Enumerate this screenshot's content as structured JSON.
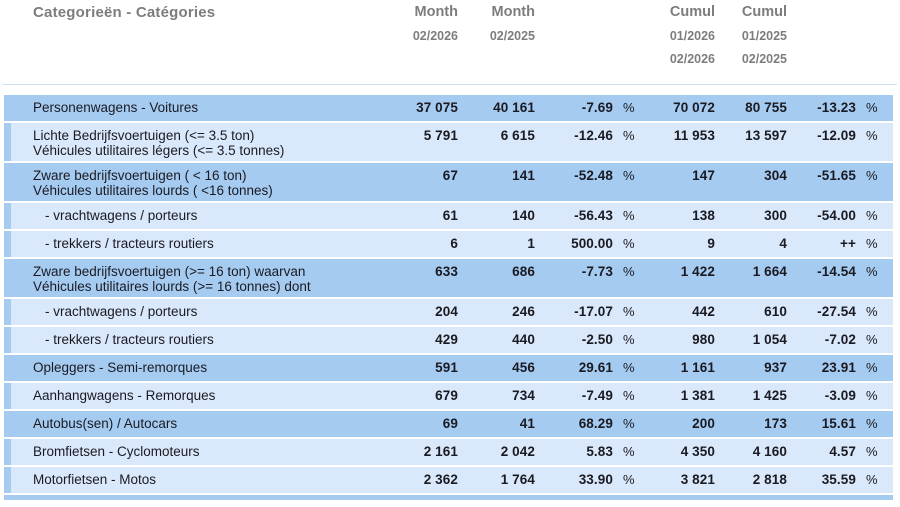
{
  "colors": {
    "row_dark": "#a5cbf1",
    "row_light": "#d9e8fa",
    "hairline": "#cfe2f6",
    "header_text": "#7d7d7d",
    "body_text": "#1a1a22"
  },
  "header": {
    "category_label": "Categorieën - Catégories",
    "columns": [
      {
        "label": "Month",
        "periods": [
          "02/2026"
        ]
      },
      {
        "label": "Month",
        "periods": [
          "02/2025"
        ]
      },
      {
        "label": "Cumul",
        "periods": [
          "01/2026",
          "02/2026"
        ]
      },
      {
        "label": "Cumul",
        "periods": [
          "01/2025",
          "02/2025"
        ]
      }
    ]
  },
  "table": {
    "percent_sign": "%",
    "rows": [
      {
        "category": [
          "Personenwagens - Voitures"
        ],
        "indent": false,
        "shade": "dark",
        "month_current": "37 075",
        "month_previous": "40 161",
        "month_change_pct": "-7.69",
        "cumul_current": "70 072",
        "cumul_previous": "80 755",
        "cumul_change_pct": "-13.23"
      },
      {
        "category": [
          "Lichte Bedrijfsvoertuigen (<= 3.5 ton)",
          "Véhicules utilitaires légers (<= 3.5 tonnes)"
        ],
        "indent": false,
        "shade": "light",
        "month_current": "5 791",
        "month_previous": "6 615",
        "month_change_pct": "-12.46",
        "cumul_current": "11 953",
        "cumul_previous": "13 597",
        "cumul_change_pct": "-12.09"
      },
      {
        "category": [
          "Zware bedrijfsvoertuigen ( < 16 ton)",
          "Véhicules utilitaires lourds ( <16 tonnes)"
        ],
        "indent": false,
        "shade": "dark",
        "month_current": "67",
        "month_previous": "141",
        "month_change_pct": "-52.48",
        "cumul_current": "147",
        "cumul_previous": "304",
        "cumul_change_pct": "-51.65"
      },
      {
        "category": [
          "- vrachtwagens / porteurs"
        ],
        "indent": true,
        "shade": "light",
        "month_current": "61",
        "month_previous": "140",
        "month_change_pct": "-56.43",
        "cumul_current": "138",
        "cumul_previous": "300",
        "cumul_change_pct": "-54.00"
      },
      {
        "category": [
          "- trekkers / tracteurs routiers"
        ],
        "indent": true,
        "shade": "light",
        "month_current": "6",
        "month_previous": "1",
        "month_change_pct": "500.00",
        "cumul_current": "9",
        "cumul_previous": "4",
        "cumul_change_pct": "++"
      },
      {
        "category": [
          "Zware bedrijfsvoertuigen (>= 16 ton) waarvan",
          "Véhicules utilitaires lourds (>= 16 tonnes) dont"
        ],
        "indent": false,
        "shade": "dark",
        "month_current": "633",
        "month_previous": "686",
        "month_change_pct": "-7.73",
        "cumul_current": "1 422",
        "cumul_previous": "1 664",
        "cumul_change_pct": "-14.54"
      },
      {
        "category": [
          "- vrachtwagens / porteurs"
        ],
        "indent": true,
        "shade": "light",
        "month_current": "204",
        "month_previous": "246",
        "month_change_pct": "-17.07",
        "cumul_current": "442",
        "cumul_previous": "610",
        "cumul_change_pct": "-27.54"
      },
      {
        "category": [
          "- trekkers / tracteurs routiers"
        ],
        "indent": true,
        "shade": "light",
        "month_current": "429",
        "month_previous": "440",
        "month_change_pct": "-2.50",
        "cumul_current": "980",
        "cumul_previous": "1 054",
        "cumul_change_pct": "-7.02"
      },
      {
        "category": [
          "Opleggers - Semi-remorques"
        ],
        "indent": false,
        "shade": "dark",
        "month_current": "591",
        "month_previous": "456",
        "month_change_pct": "29.61",
        "cumul_current": "1 161",
        "cumul_previous": "937",
        "cumul_change_pct": "23.91"
      },
      {
        "category": [
          "Aanhangwagens - Remorques"
        ],
        "indent": false,
        "shade": "light",
        "month_current": "679",
        "month_previous": "734",
        "month_change_pct": "-7.49",
        "cumul_current": "1 381",
        "cumul_previous": "1 425",
        "cumul_change_pct": "-3.09"
      },
      {
        "category": [
          "Autobus(sen) / Autocars"
        ],
        "indent": false,
        "shade": "dark",
        "month_current": "69",
        "month_previous": "41",
        "month_change_pct": "68.29",
        "cumul_current": "200",
        "cumul_previous": "173",
        "cumul_change_pct": "15.61"
      },
      {
        "category": [
          "Bromfietsen - Cyclomoteurs"
        ],
        "indent": false,
        "shade": "light",
        "month_current": "2 161",
        "month_previous": "2 042",
        "month_change_pct": "5.83",
        "cumul_current": "4 350",
        "cumul_previous": "4 160",
        "cumul_change_pct": "4.57"
      },
      {
        "category": [
          "Motorfietsen - Motos"
        ],
        "indent": false,
        "shade": "light",
        "month_current": "2 362",
        "month_previous": "1 764",
        "month_change_pct": "33.90",
        "cumul_current": "3 821",
        "cumul_previous": "2 818",
        "cumul_change_pct": "35.59"
      }
    ]
  }
}
